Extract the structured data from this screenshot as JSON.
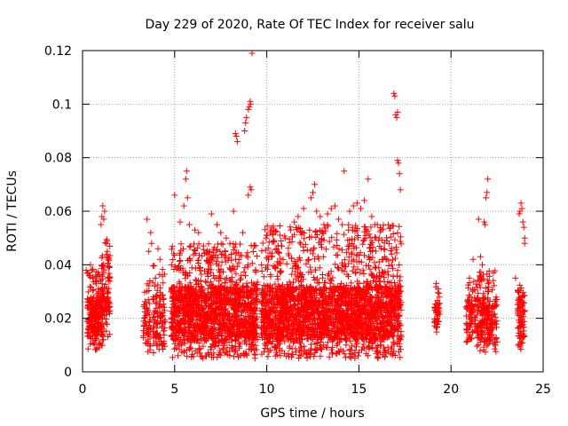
{
  "chart_data": {
    "type": "scatter",
    "title": "Day 229 of 2020, Rate Of TEC Index for receiver salu",
    "xlabel": "GPS time / hours",
    "ylabel": "ROTI / TECUs",
    "xlim": [
      0,
      25
    ],
    "ylim": [
      0,
      0.12
    ],
    "xticks": [
      0,
      5,
      10,
      15,
      20,
      25
    ],
    "yticks": [
      0,
      0.02,
      0.04,
      0.06,
      0.08,
      0.1,
      0.12
    ],
    "ytick_labels": [
      "0",
      "0.02",
      "0.04",
      "0.06",
      "0.08",
      "0.1",
      "0.12"
    ],
    "grid": true,
    "marker": "+",
    "color": "#ff0000",
    "density_bands": [
      {
        "x": [
          0.25,
          1.1
        ],
        "y_low": 0.008,
        "y_core": [
          0.013,
          0.028
        ],
        "y_high": 0.04,
        "count": 260
      },
      {
        "x": [
          1.05,
          1.5
        ],
        "y_low": 0.012,
        "y_core": [
          0.02,
          0.04
        ],
        "y_high": 0.05,
        "count": 90
      },
      {
        "x": [
          3.3,
          3.7
        ],
        "y_low": 0.007,
        "y_core": [
          0.012,
          0.027
        ],
        "y_high": 0.035,
        "count": 60
      },
      {
        "x": [
          3.8,
          4.5
        ],
        "y_low": 0.007,
        "y_core": [
          0.012,
          0.03
        ],
        "y_high": 0.04,
        "count": 110
      },
      {
        "x": [
          4.8,
          9.5
        ],
        "y_low": 0.005,
        "y_core": [
          0.012,
          0.032
        ],
        "y_high": 0.048,
        "count": 1500
      },
      {
        "x": [
          9.7,
          17.3
        ],
        "y_low": 0.005,
        "y_core": [
          0.012,
          0.032
        ],
        "y_high": 0.055,
        "count": 2500
      },
      {
        "x": [
          19.1,
          19.4
        ],
        "y_low": 0.013,
        "y_core": [
          0.016,
          0.026
        ],
        "y_high": 0.033,
        "count": 45
      },
      {
        "x": [
          20.8,
          21.4
        ],
        "y_low": 0.011,
        "y_core": [
          0.014,
          0.028
        ],
        "y_high": 0.034,
        "count": 80
      },
      {
        "x": [
          21.4,
          22.5
        ],
        "y_low": 0.007,
        "y_core": [
          0.012,
          0.028
        ],
        "y_high": 0.038,
        "count": 220
      },
      {
        "x": [
          23.6,
          24.0
        ],
        "y_low": 0.008,
        "y_core": [
          0.012,
          0.027
        ],
        "y_high": 0.033,
        "count": 90
      }
    ],
    "points": [
      [
        0.2,
        0.038
      ],
      [
        0.4,
        0.036
      ],
      [
        0.9,
        0.034
      ],
      [
        1.0,
        0.055
      ],
      [
        1.05,
        0.058
      ],
      [
        1.1,
        0.062
      ],
      [
        1.2,
        0.06
      ],
      [
        1.15,
        0.057
      ],
      [
        1.3,
        0.048
      ],
      [
        1.35,
        0.045
      ],
      [
        1.4,
        0.042
      ],
      [
        3.5,
        0.057
      ],
      [
        3.7,
        0.052
      ],
      [
        3.75,
        0.048
      ],
      [
        3.6,
        0.045
      ],
      [
        4.1,
        0.046
      ],
      [
        4.2,
        0.042
      ],
      [
        5.0,
        0.066
      ],
      [
        5.3,
        0.056
      ],
      [
        5.5,
        0.062
      ],
      [
        5.6,
        0.072
      ],
      [
        5.65,
        0.075
      ],
      [
        5.7,
        0.065
      ],
      [
        5.8,
        0.055
      ],
      [
        6.1,
        0.053
      ],
      [
        6.3,
        0.052
      ],
      [
        7.0,
        0.059
      ],
      [
        7.3,
        0.055
      ],
      [
        7.5,
        0.052
      ],
      [
        7.8,
        0.05
      ],
      [
        8.0,
        0.048
      ],
      [
        8.2,
        0.06
      ],
      [
        8.3,
        0.089
      ],
      [
        8.35,
        0.088
      ],
      [
        8.4,
        0.086
      ],
      [
        8.7,
        0.052
      ],
      [
        8.8,
        0.09
      ],
      [
        8.85,
        0.093
      ],
      [
        8.9,
        0.095
      ],
      [
        9.0,
        0.098
      ],
      [
        9.05,
        0.099
      ],
      [
        9.1,
        0.101
      ],
      [
        9.12,
        0.1
      ],
      [
        9.2,
        0.119
      ],
      [
        9.0,
        0.066
      ],
      [
        9.1,
        0.069
      ],
      [
        9.15,
        0.068
      ],
      [
        10.2,
        0.052
      ],
      [
        10.4,
        0.049
      ],
      [
        10.8,
        0.047
      ],
      [
        11.0,
        0.05
      ],
      [
        11.3,
        0.053
      ],
      [
        11.5,
        0.056
      ],
      [
        11.7,
        0.058
      ],
      [
        12.0,
        0.061
      ],
      [
        12.4,
        0.065
      ],
      [
        12.5,
        0.067
      ],
      [
        12.6,
        0.07
      ],
      [
        12.7,
        0.06
      ],
      [
        12.9,
        0.058
      ],
      [
        13.1,
        0.055
      ],
      [
        13.3,
        0.059
      ],
      [
        13.5,
        0.061
      ],
      [
        13.7,
        0.062
      ],
      [
        13.9,
        0.057
      ],
      [
        14.1,
        0.055
      ],
      [
        14.2,
        0.075
      ],
      [
        14.5,
        0.06
      ],
      [
        14.7,
        0.062
      ],
      [
        14.9,
        0.063
      ],
      [
        15.1,
        0.061
      ],
      [
        15.3,
        0.064
      ],
      [
        15.5,
        0.072
      ],
      [
        15.7,
        0.058
      ],
      [
        16.0,
        0.055
      ],
      [
        16.2,
        0.053
      ],
      [
        16.6,
        0.055
      ],
      [
        16.9,
        0.104
      ],
      [
        16.95,
        0.103
      ],
      [
        17.0,
        0.096
      ],
      [
        17.05,
        0.095
      ],
      [
        17.1,
        0.097
      ],
      [
        17.1,
        0.079
      ],
      [
        17.15,
        0.078
      ],
      [
        17.2,
        0.074
      ],
      [
        17.25,
        0.068
      ],
      [
        19.2,
        0.033
      ],
      [
        19.3,
        0.031
      ],
      [
        21.0,
        0.035
      ],
      [
        21.2,
        0.042
      ],
      [
        21.5,
        0.057
      ],
      [
        21.6,
        0.043
      ],
      [
        21.7,
        0.04
      ],
      [
        21.8,
        0.056
      ],
      [
        21.85,
        0.055
      ],
      [
        21.9,
        0.065
      ],
      [
        21.95,
        0.067
      ],
      [
        22.0,
        0.072
      ],
      [
        22.3,
        0.037
      ],
      [
        23.5,
        0.035
      ],
      [
        23.7,
        0.059
      ],
      [
        23.75,
        0.06
      ],
      [
        23.8,
        0.063
      ],
      [
        23.85,
        0.061
      ],
      [
        23.9,
        0.056
      ],
      [
        23.95,
        0.054
      ],
      [
        24.0,
        0.05
      ],
      [
        24.0,
        0.048
      ]
    ]
  }
}
